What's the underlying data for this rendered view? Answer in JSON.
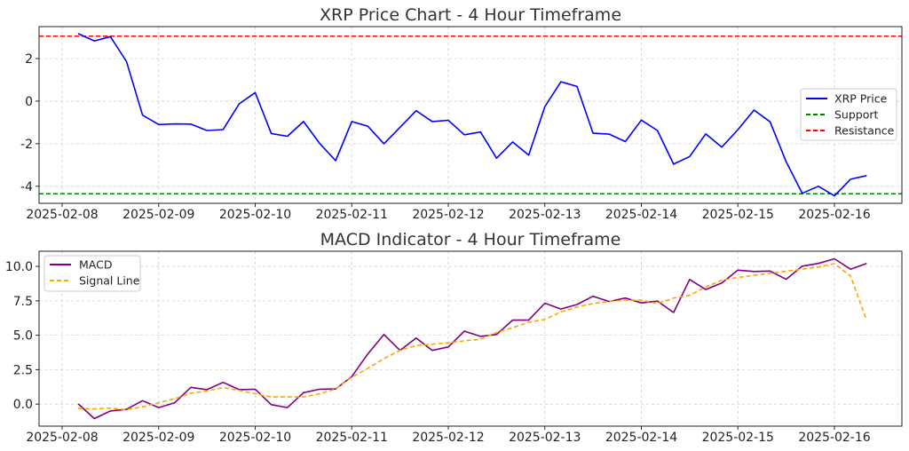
{
  "colors": {
    "price": "#0000ff",
    "support": "#008000",
    "resistance": "#ff0000",
    "macd": "#800080",
    "signal": "#ffa500"
  },
  "chart_data": [
    {
      "type": "line",
      "title": "XRP Price Chart - 4 Hour Timeframe",
      "xlabel": "",
      "ylabel": "",
      "x_ticks": [
        "2025-02-08",
        "2025-02-09",
        "2025-02-10",
        "2025-02-11",
        "2025-02-12",
        "2025-02-13",
        "2025-02-14",
        "2025-02-15",
        "2025-02-16"
      ],
      "y_ticks": [
        2,
        0,
        -2,
        -4
      ],
      "ylim": [
        -4.8,
        3.5
      ],
      "x_start": "2025-02-08 04:00",
      "x_step_hours": 4,
      "grid": true,
      "legend_position": "center-right",
      "series": [
        {
          "name": "XRP Price",
          "style": "solid",
          "values": [
            3.17,
            2.83,
            3.03,
            1.86,
            -0.66,
            -1.1,
            -1.07,
            -1.08,
            -1.38,
            -1.34,
            -0.13,
            0.4,
            -1.52,
            -1.65,
            -0.96,
            -1.98,
            -2.8,
            -0.96,
            -1.18,
            -2.0,
            -1.23,
            -0.45,
            -0.96,
            -0.9,
            -1.58,
            -1.45,
            -2.68,
            -1.92,
            -2.54,
            -0.26,
            0.91,
            0.69,
            -1.51,
            -1.55,
            -1.9,
            -0.89,
            -1.38,
            -2.96,
            -2.6,
            -1.54,
            -2.16,
            -1.34,
            -0.42,
            -0.97,
            -2.85,
            -4.33,
            -4.0,
            -4.45,
            -3.67,
            -3.5
          ]
        }
      ],
      "hlines": [
        {
          "name": "Support",
          "value": -4.35,
          "style": "dashed"
        },
        {
          "name": "Resistance",
          "value": 3.05,
          "style": "dashed"
        }
      ]
    },
    {
      "type": "line",
      "title": "MACD Indicator - 4 Hour Timeframe",
      "xlabel": "",
      "ylabel": "",
      "x_ticks": [
        "2025-02-08",
        "2025-02-09",
        "2025-02-10",
        "2025-02-11",
        "2025-02-12",
        "2025-02-13",
        "2025-02-14",
        "2025-02-15",
        "2025-02-16"
      ],
      "y_ticks": [
        "10.0",
        "7.5",
        "5.0",
        "2.5",
        "0.0"
      ],
      "ylim": [
        -1.6,
        11.1
      ],
      "x_start": "2025-02-08 04:00",
      "x_step_hours": 4,
      "grid": true,
      "legend_position": "upper-left",
      "series": [
        {
          "name": "MACD",
          "style": "solid",
          "values": [
            0.02,
            -1.05,
            -0.5,
            -0.38,
            0.25,
            -0.25,
            0.1,
            1.22,
            1.05,
            1.58,
            1.05,
            1.08,
            -0.04,
            -0.25,
            0.83,
            1.08,
            1.1,
            2.0,
            3.65,
            5.05,
            3.9,
            4.8,
            3.9,
            4.15,
            5.3,
            4.92,
            5.06,
            6.1,
            6.1,
            7.33,
            6.9,
            7.23,
            7.83,
            7.45,
            7.7,
            7.35,
            7.48,
            6.65,
            9.05,
            8.32,
            8.8,
            9.73,
            9.63,
            9.66,
            9.06,
            10.02,
            10.22,
            10.55,
            9.8,
            10.22
          ]
        },
        {
          "name": "Signal Line",
          "style": "dashed",
          "values": [
            -0.32,
            -0.35,
            -0.3,
            -0.4,
            -0.2,
            0.1,
            0.4,
            0.8,
            0.95,
            1.2,
            1.0,
            0.75,
            0.52,
            0.52,
            0.52,
            0.75,
            1.1,
            1.95,
            2.6,
            3.3,
            3.9,
            4.25,
            4.35,
            4.45,
            4.6,
            4.7,
            5.2,
            5.55,
            5.95,
            6.15,
            6.7,
            7.05,
            7.3,
            7.45,
            7.55,
            7.55,
            7.3,
            7.7,
            7.9,
            8.5,
            9.0,
            9.2,
            9.35,
            9.5,
            9.65,
            9.8,
            9.95,
            10.2,
            9.3,
            6.1
          ]
        }
      ]
    }
  ]
}
